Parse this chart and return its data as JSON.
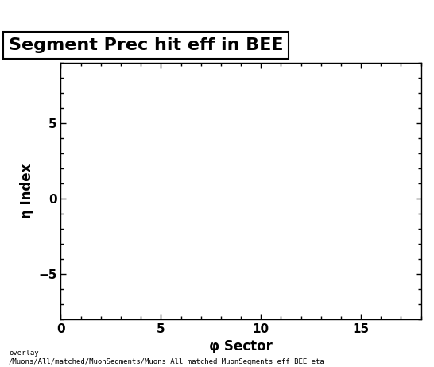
{
  "title": "Segment Prec hit eff in BEE",
  "xlabel": "φ Sector",
  "ylabel": "η Index",
  "xlim": [
    0,
    18
  ],
  "ylim": [
    -8,
    9
  ],
  "xticks": [
    0,
    5,
    10,
    15
  ],
  "yticks": [
    -5,
    0,
    5
  ],
  "background_color": "#ffffff",
  "plot_bg_color": "#ffffff",
  "title_fontsize": 16,
  "label_fontsize": 12,
  "tick_fontsize": 11,
  "footer_text": "overlay\n/Muons/All/matched/MuonSegments/Muons_All_matched_MuonSegments_eff_BEE_eta",
  "footer_fontsize": 6.5
}
